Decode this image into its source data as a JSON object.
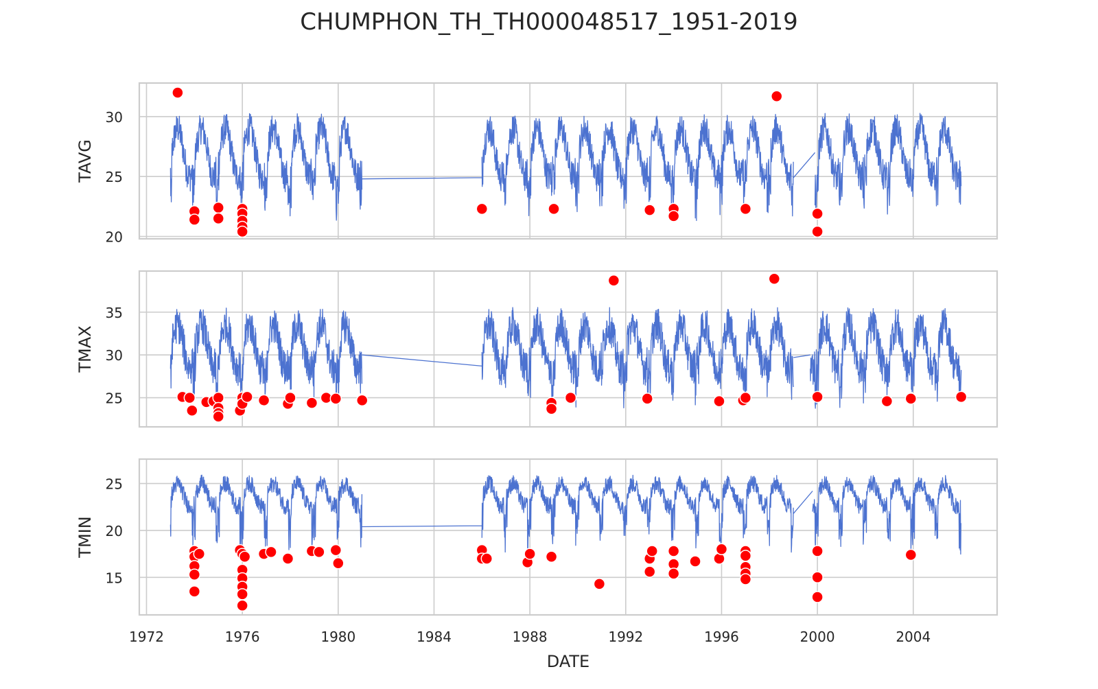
{
  "figure": {
    "title": "CHUMPHON_TH_TH000048517_1951-2019",
    "xlabel": "DATE"
  },
  "colors": {
    "series": "#4c72d0",
    "outlier": "#ff0000",
    "grid": "#cccccc",
    "frame": "#cccccc",
    "text": "#262626"
  },
  "chart_data": [
    {
      "type": "line",
      "panel": "top",
      "ylabel": "TAVG",
      "xlim": [
        1971.7,
        2007.5
      ],
      "ylim": [
        19.8,
        32.8
      ],
      "yticks": [
        20,
        25,
        30
      ],
      "xticks": [
        1972,
        1976,
        1980,
        1984,
        1988,
        1992,
        1996,
        2000,
        2004
      ],
      "grid": true,
      "series_profile": {
        "segments": [
          [
            1973.0,
            1981.0
          ],
          [
            1986.0,
            1999.0
          ],
          [
            1999.9,
            2006.0
          ]
        ],
        "gap_links": [
          [
            [
              1981.0,
              24.8
            ],
            [
              1986.0,
              24.9
            ]
          ],
          [
            [
              1999.0,
              24.9
            ],
            [
              1999.9,
              27.0
            ]
          ]
        ],
        "base": 27.0,
        "amplitude": 2.0,
        "noise": 2.6,
        "low_dip": 3.5
      },
      "outliers": [
        {
          "x": 1973.3,
          "y": 32.0
        },
        {
          "x": 1974.0,
          "y": 22.1
        },
        {
          "x": 1974.0,
          "y": 21.4
        },
        {
          "x": 1975.0,
          "y": 22.4
        },
        {
          "x": 1975.0,
          "y": 21.5
        },
        {
          "x": 1976.0,
          "y": 22.3
        },
        {
          "x": 1976.0,
          "y": 21.9
        },
        {
          "x": 1976.0,
          "y": 21.3
        },
        {
          "x": 1976.0,
          "y": 20.8
        },
        {
          "x": 1976.0,
          "y": 20.4
        },
        {
          "x": 1986.0,
          "y": 22.3
        },
        {
          "x": 1989.0,
          "y": 22.3
        },
        {
          "x": 1993.0,
          "y": 22.2
        },
        {
          "x": 1994.0,
          "y": 22.3
        },
        {
          "x": 1994.0,
          "y": 21.7
        },
        {
          "x": 1997.0,
          "y": 22.3
        },
        {
          "x": 1998.3,
          "y": 31.7
        },
        {
          "x": 2000.0,
          "y": 21.9
        },
        {
          "x": 2000.0,
          "y": 20.4
        }
      ]
    },
    {
      "type": "line",
      "panel": "middle",
      "ylabel": "TMAX",
      "xlim": [
        1971.7,
        2007.5
      ],
      "ylim": [
        21.6,
        39.8
      ],
      "yticks": [
        25,
        30,
        35
      ],
      "xticks": [
        1972,
        1976,
        1980,
        1984,
        1988,
        1992,
        1996,
        2000,
        2004
      ],
      "grid": true,
      "series_profile": {
        "segments": [
          [
            1973.0,
            1981.0
          ],
          [
            1986.0,
            1999.0
          ],
          [
            1999.7,
            2006.0
          ]
        ],
        "gap_links": [
          [
            [
              1981.0,
              30.0
            ],
            [
              1986.0,
              28.7
            ]
          ],
          [
            [
              1999.0,
              29.7
            ],
            [
              1999.7,
              30.0
            ]
          ]
        ],
        "base": 31.0,
        "amplitude": 2.5,
        "noise": 4.2,
        "low_dip": 4.0
      },
      "outliers": [
        {
          "x": 1973.5,
          "y": 25.1
        },
        {
          "x": 1973.8,
          "y": 25.0
        },
        {
          "x": 1973.9,
          "y": 23.5
        },
        {
          "x": 1974.5,
          "y": 24.5
        },
        {
          "x": 1974.8,
          "y": 24.6
        },
        {
          "x": 1975.0,
          "y": 25.0
        },
        {
          "x": 1975.0,
          "y": 23.8
        },
        {
          "x": 1975.0,
          "y": 23.2
        },
        {
          "x": 1975.0,
          "y": 22.8
        },
        {
          "x": 1975.9,
          "y": 23.5
        },
        {
          "x": 1976.0,
          "y": 25.0
        },
        {
          "x": 1976.0,
          "y": 24.3
        },
        {
          "x": 1976.2,
          "y": 25.1
        },
        {
          "x": 1976.9,
          "y": 24.7
        },
        {
          "x": 1977.9,
          "y": 24.3
        },
        {
          "x": 1978.0,
          "y": 25.0
        },
        {
          "x": 1978.9,
          "y": 24.4
        },
        {
          "x": 1979.5,
          "y": 25.0
        },
        {
          "x": 1979.9,
          "y": 24.9
        },
        {
          "x": 1981.0,
          "y": 24.7
        },
        {
          "x": 1988.9,
          "y": 24.4
        },
        {
          "x": 1988.9,
          "y": 23.7
        },
        {
          "x": 1989.7,
          "y": 25.0
        },
        {
          "x": 1991.5,
          "y": 38.7
        },
        {
          "x": 1992.9,
          "y": 24.9
        },
        {
          "x": 1995.9,
          "y": 24.6
        },
        {
          "x": 1996.9,
          "y": 24.7
        },
        {
          "x": 1997.0,
          "y": 25.0
        },
        {
          "x": 1998.2,
          "y": 38.9
        },
        {
          "x": 2000.0,
          "y": 25.1
        },
        {
          "x": 2002.9,
          "y": 24.6
        },
        {
          "x": 2003.9,
          "y": 24.9
        },
        {
          "x": 2006.0,
          "y": 25.1
        }
      ]
    },
    {
      "type": "line",
      "panel": "bottom",
      "ylabel": "TMIN",
      "xlim": [
        1971.7,
        2007.5
      ],
      "ylim": [
        11.0,
        27.6
      ],
      "yticks": [
        15,
        20,
        25
      ],
      "xticks": [
        1972,
        1976,
        1980,
        1984,
        1988,
        1992,
        1996,
        2000,
        2004
      ],
      "xticklabels": [
        "1972",
        "1976",
        "1980",
        "1984",
        "1988",
        "1992",
        "1996",
        "2000",
        "2004"
      ],
      "grid": true,
      "series_profile": {
        "segments": [
          [
            1973.0,
            1981.0
          ],
          [
            1986.0,
            1999.0
          ],
          [
            1999.8,
            2006.0
          ]
        ],
        "gap_links": [
          [
            [
              1981.0,
              20.4
            ],
            [
              1986.0,
              20.5
            ]
          ],
          [
            [
              1999.0,
              21.8
            ],
            [
              1999.8,
              24.2
            ]
          ]
        ],
        "base": 23.8,
        "amplitude": 1.2,
        "noise": 1.8,
        "low_dip": 5.0
      },
      "outliers": [
        {
          "x": 1974.0,
          "y": 17.8
        },
        {
          "x": 1974.0,
          "y": 17.2
        },
        {
          "x": 1974.2,
          "y": 17.5
        },
        {
          "x": 1974.0,
          "y": 16.2
        },
        {
          "x": 1974.0,
          "y": 15.3
        },
        {
          "x": 1974.0,
          "y": 13.5
        },
        {
          "x": 1975.9,
          "y": 17.9
        },
        {
          "x": 1976.0,
          "y": 17.5
        },
        {
          "x": 1976.1,
          "y": 17.2
        },
        {
          "x": 1976.0,
          "y": 15.8
        },
        {
          "x": 1976.0,
          "y": 14.9
        },
        {
          "x": 1976.0,
          "y": 14.0
        },
        {
          "x": 1976.0,
          "y": 13.2
        },
        {
          "x": 1976.0,
          "y": 12.0
        },
        {
          "x": 1976.9,
          "y": 17.5
        },
        {
          "x": 1977.2,
          "y": 17.7
        },
        {
          "x": 1977.9,
          "y": 17.0
        },
        {
          "x": 1978.9,
          "y": 17.8
        },
        {
          "x": 1979.2,
          "y": 17.7
        },
        {
          "x": 1979.9,
          "y": 17.9
        },
        {
          "x": 1980.0,
          "y": 16.5
        },
        {
          "x": 1986.0,
          "y": 17.9
        },
        {
          "x": 1986.0,
          "y": 17.0
        },
        {
          "x": 1986.2,
          "y": 17.0
        },
        {
          "x": 1987.9,
          "y": 16.6
        },
        {
          "x": 1988.0,
          "y": 17.5
        },
        {
          "x": 1988.9,
          "y": 17.2
        },
        {
          "x": 1990.9,
          "y": 14.3
        },
        {
          "x": 1993.0,
          "y": 15.6
        },
        {
          "x": 1993.0,
          "y": 17.0
        },
        {
          "x": 1993.1,
          "y": 17.8
        },
        {
          "x": 1994.0,
          "y": 17.8
        },
        {
          "x": 1994.0,
          "y": 16.4
        },
        {
          "x": 1994.0,
          "y": 15.4
        },
        {
          "x": 1994.9,
          "y": 16.7
        },
        {
          "x": 1995.9,
          "y": 17.0
        },
        {
          "x": 1996.0,
          "y": 18.0
        },
        {
          "x": 1997.0,
          "y": 17.8
        },
        {
          "x": 1997.0,
          "y": 17.3
        },
        {
          "x": 1997.0,
          "y": 16.1
        },
        {
          "x": 1997.0,
          "y": 15.4
        },
        {
          "x": 1997.0,
          "y": 14.8
        },
        {
          "x": 2000.0,
          "y": 17.8
        },
        {
          "x": 2000.0,
          "y": 15.0
        },
        {
          "x": 2000.0,
          "y": 12.9
        },
        {
          "x": 2003.9,
          "y": 17.4
        }
      ]
    }
  ]
}
